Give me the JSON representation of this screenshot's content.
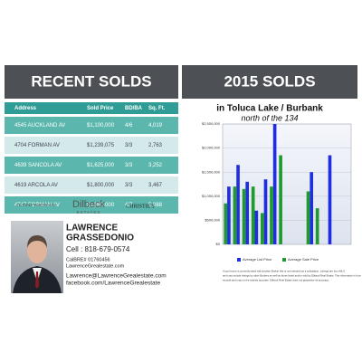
{
  "header": {
    "left_title": "RECENT SOLDS",
    "right_title": "2015 SOLDS"
  },
  "table": {
    "columns": [
      "Address",
      "Sold Price",
      "BD/BA",
      "Sq. Ft."
    ],
    "rows": [
      [
        "4545 AUCKLAND AV",
        "$1,100,000",
        "4/6",
        "4,019"
      ],
      [
        "4704 FORMAN AV",
        "$1,239,075",
        "3/3",
        "2,763"
      ],
      [
        "4639 SANCOLA AV",
        "$1,625,000",
        "3/3",
        "3,252"
      ],
      [
        "4619 ARCOLA AV",
        "$1,800,000",
        "3/3",
        "3,467"
      ],
      [
        "4747 FORMAN AV",
        "$1,900,000",
        "4/7",
        "5,088"
      ]
    ]
  },
  "logos": [
    "LUXURY PORTFOLIO",
    "Dilbeck",
    "ESTATES",
    "CHRISTIE'S"
  ],
  "agent": {
    "name_line1": "LAWRENCE",
    "name_line2": "GRASSEDONIO",
    "cell": "Cell : 818-679-0574",
    "license": "CalBRE# 01760456",
    "website": "LawrenceGrealestate.com",
    "email": "Lawrence@LawrenceGrealestate.com",
    "facebook": "facebook.com/LawrenceGrealestate"
  },
  "chart_data": {
    "type": "bar",
    "title": "in Toluca Lake / Burbank",
    "subtitle": "north of the 134",
    "categories": [
      null,
      null,
      null,
      null,
      null,
      null,
      null,
      null,
      null,
      null,
      null,
      null,
      null,
      null
    ],
    "series": [
      {
        "name": "Average List Price",
        "color": "#1f2fe0",
        "values": [
          1200000,
          1650000,
          1300000,
          700000,
          1350000,
          2500000,
          null,
          null,
          null,
          1500000,
          null,
          1850000,
          null,
          null
        ]
      },
      {
        "name": "Average Sale Price",
        "color": "#1f9a2f",
        "values": [
          850000,
          1200000,
          1150000,
          1200000,
          650000,
          1200000,
          1850000,
          null,
          null,
          1100000,
          750000,
          null,
          null,
          null
        ]
      }
    ],
    "ylim": [
      0,
      2500000
    ],
    "yticks": [
      {
        "value": 0,
        "label": "$0"
      },
      {
        "value": 500000,
        "label": "$500,000"
      },
      {
        "value": 1000000,
        "label": "$1,000,000"
      },
      {
        "value": 1500000,
        "label": "$1,500,000"
      },
      {
        "value": 2000000,
        "label": "$2,000,000"
      },
      {
        "value": 2500000,
        "label": "$2,500,000"
      }
    ],
    "grid": true
  },
  "disclaimer": [
    "If your home is currently listed with another Broker this is not intended as a solicitation. Listings are from MLS",
    "and may include listings by other Brokers as well as those listed and/or sold by Dilbeck Real Estate. This information is from public",
    "records and may not be entirely accurate. Dilbeck Real Estate does not guarantee its accuracy."
  ]
}
